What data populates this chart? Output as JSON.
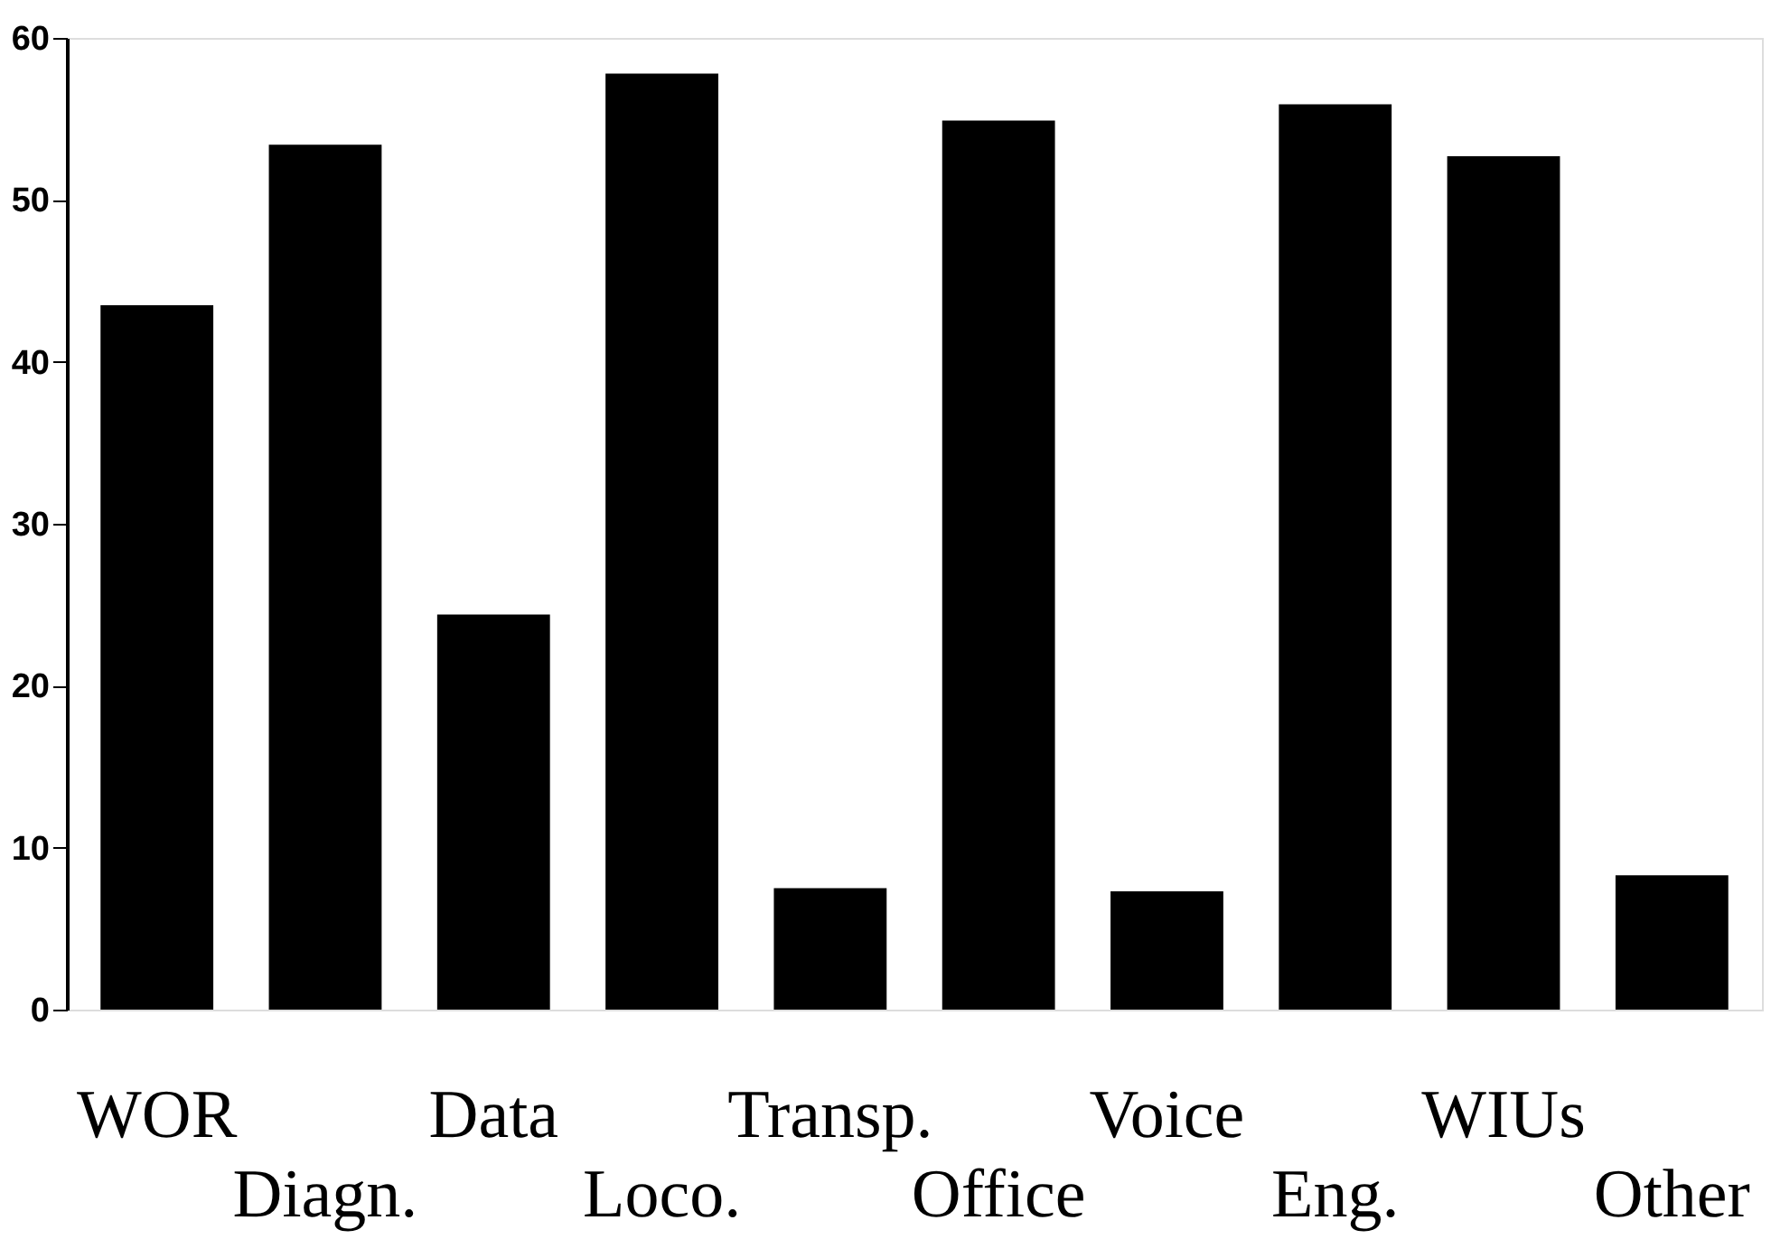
{
  "chart_data": {
    "type": "bar",
    "categories": [
      "WOR",
      "Diagn.",
      "Data",
      "Loco.",
      "Transp.",
      "Office",
      "Voice",
      "Eng.",
      "WIUs",
      "Other"
    ],
    "values": [
      43.5,
      53.4,
      24.4,
      57.8,
      7.5,
      54.9,
      7.3,
      55.9,
      52.7,
      8.3
    ],
    "color": "#000000",
    "ylim": [
      0,
      60
    ],
    "yticks": [
      0,
      10,
      20,
      30,
      40,
      50,
      60
    ],
    "grid": false
  }
}
